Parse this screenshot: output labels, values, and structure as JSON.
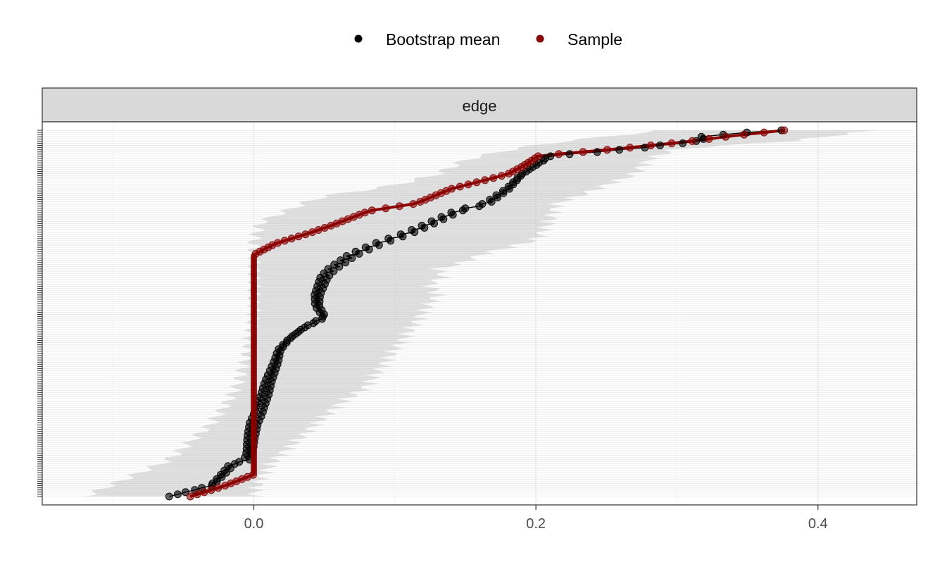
{
  "chart_data": {
    "type": "scatter",
    "title": "",
    "xlabel": "",
    "ylabel": "",
    "facet_label": "edge",
    "xlim": [
      -0.15,
      0.47
    ],
    "x_ticks": [
      0.0,
      0.2,
      0.4
    ],
    "x_tick_labels": [
      "0.0",
      "0.2",
      "0.4"
    ],
    "y_tick_labels_shown": false,
    "edge_count": 170,
    "grid": true,
    "legend_position": "top",
    "legend": [
      {
        "name": "Bootstrap mean",
        "color": "#000000"
      },
      {
        "name": "Sample",
        "color": "#8B0000"
      }
    ],
    "series": [
      {
        "name": "Sample",
        "color": "#8B0000",
        "profile_rank": [
          0.0,
          0.03,
          0.06,
          0.09,
          0.095,
          0.1,
          0.12,
          0.16,
          0.2,
          0.225,
          0.25,
          0.28,
          0.31,
          0.34,
          0.37,
          0.4,
          0.43,
          0.46,
          0.49,
          0.52,
          0.55,
          0.58,
          0.6,
          0.62,
          0.66,
          0.69,
          0.72,
          0.74,
          0.78,
          0.8,
          0.84,
          0.88,
          0.9,
          0.93,
          0.95,
          0.97,
          0.985,
          1.0
        ],
        "profile_x": [
          -0.045,
          -0.02,
          0.0,
          0.0,
          0.0,
          0.0,
          0.0,
          0.0,
          0.0,
          0.0,
          0.0,
          0.0,
          0.0,
          0.0,
          0.0,
          0.0,
          0.0,
          0.0,
          0.0,
          0.0,
          0.0,
          0.0,
          0.0,
          0.0,
          0.0,
          0.015,
          0.04,
          0.055,
          0.082,
          0.115,
          0.14,
          0.18,
          0.19,
          0.202,
          0.26,
          0.31,
          0.34,
          0.376
        ]
      },
      {
        "name": "Bootstrap mean",
        "color": "#000000",
        "profile_rank": [
          0.0,
          0.03,
          0.06,
          0.09,
          0.095,
          0.1,
          0.12,
          0.16,
          0.2,
          0.225,
          0.25,
          0.28,
          0.31,
          0.34,
          0.37,
          0.4,
          0.43,
          0.46,
          0.49,
          0.52,
          0.55,
          0.58,
          0.6,
          0.62,
          0.66,
          0.69,
          0.72,
          0.74,
          0.78,
          0.8,
          0.84,
          0.88,
          0.9,
          0.93,
          0.95,
          0.97,
          0.985,
          1.0
        ],
        "profile_x": [
          -0.06,
          -0.03,
          -0.022,
          -0.015,
          -0.008,
          -0.005,
          -0.003,
          -0.002,
          0.0,
          0.003,
          0.005,
          0.008,
          0.01,
          0.013,
          0.016,
          0.018,
          0.025,
          0.035,
          0.05,
          0.045,
          0.045,
          0.048,
          0.05,
          0.055,
          0.07,
          0.088,
          0.11,
          0.122,
          0.145,
          0.165,
          0.18,
          0.19,
          0.198,
          0.21,
          0.27,
          0.315,
          0.32,
          0.372
        ]
      }
    ],
    "ci_band": {
      "profile_rank": [
        0.0,
        0.05,
        0.1,
        0.15,
        0.2,
        0.25,
        0.3,
        0.35,
        0.4,
        0.45,
        0.5,
        0.55,
        0.58,
        0.6,
        0.62,
        0.64,
        0.66,
        0.7,
        0.75,
        0.8,
        0.82,
        0.85,
        0.88,
        0.92,
        0.95,
        0.97,
        1.0
      ],
      "lower": [
        -0.12,
        -0.09,
        -0.06,
        -0.045,
        -0.03,
        -0.02,
        -0.012,
        -0.008,
        -0.004,
        -0.002,
        0.0,
        0.0,
        0.0,
        0.0,
        0.0,
        0.0,
        0.0,
        0.0,
        0.005,
        0.035,
        0.05,
        0.1,
        0.13,
        0.15,
        0.185,
        0.22,
        0.29
      ],
      "upper": [
        0.0,
        0.005,
        0.015,
        0.03,
        0.045,
        0.06,
        0.08,
        0.09,
        0.1,
        0.11,
        0.12,
        0.13,
        0.125,
        0.135,
        0.13,
        0.15,
        0.16,
        0.2,
        0.21,
        0.215,
        0.23,
        0.25,
        0.27,
        0.28,
        0.3,
        0.38,
        0.44
      ]
    }
  }
}
